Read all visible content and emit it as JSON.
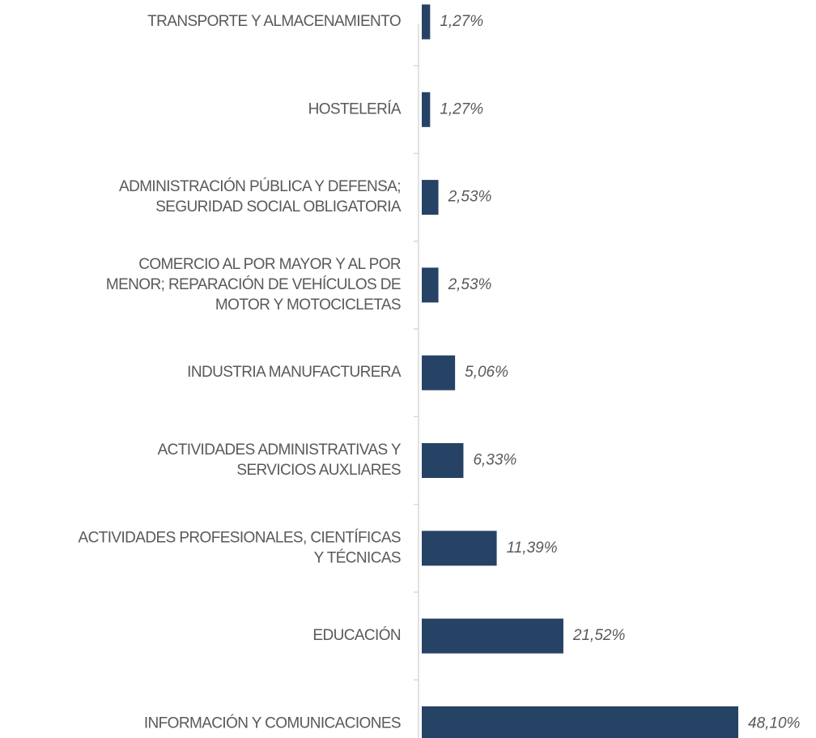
{
  "chart_data": {
    "type": "barh",
    "categories": [
      [
        "TRANSPORTE Y ALMACENAMIENTO"
      ],
      [
        "HOSTELERÍA"
      ],
      [
        "ADMINISTRACIÓN PÚBLICA Y DEFENSA;",
        "SEGURIDAD SOCIAL OBLIGATORIA"
      ],
      [
        "COMERCIO AL POR MAYOR Y AL POR",
        "MENOR; REPARACIÓN DE VEHÍCULOS DE",
        "MOTOR Y MOTOCICLETAS"
      ],
      [
        "INDUSTRIA MANUFACTURERA"
      ],
      [
        "ACTIVIDADES ADMINISTRATIVAS Y",
        "SERVICIOS AUXLIARES"
      ],
      [
        "ACTIVIDADES PROFESIONALES, CIENTÍFICAS",
        "Y TÉCNICAS"
      ],
      [
        "EDUCACIÓN"
      ],
      [
        "INFORMACIÓN Y COMUNICACIONES"
      ]
    ],
    "values": [
      1.27,
      1.27,
      2.53,
      2.53,
      5.06,
      6.33,
      11.39,
      21.52,
      48.1
    ],
    "value_labels": [
      "1,27%",
      "1,27%",
      "2,53%",
      "2,53%",
      "5,06%",
      "6,33%",
      "11,39%",
      "21,52%",
      "48,10%"
    ],
    "color": "#264366"
  }
}
